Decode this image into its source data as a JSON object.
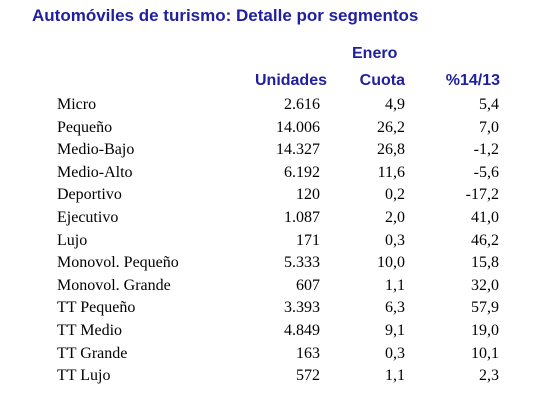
{
  "title": "Automóviles de turismo: Detalle por segmentos",
  "header": {
    "group": "Enero",
    "col_units": "Unidades",
    "col_share": "Cuota",
    "col_change": "%14/13"
  },
  "rows": [
    {
      "segment": "Micro",
      "units": "2.616",
      "share": "4,9",
      "change": "5,4"
    },
    {
      "segment": "Pequeño",
      "units": "14.006",
      "share": "26,2",
      "change": "7,0"
    },
    {
      "segment": "Medio-Bajo",
      "units": "14.327",
      "share": "26,8",
      "change": "-1,2"
    },
    {
      "segment": "Medio-Alto",
      "units": "6.192",
      "share": "11,6",
      "change": "-5,6"
    },
    {
      "segment": "Deportivo",
      "units": "120",
      "share": "0,2",
      "change": "-17,2"
    },
    {
      "segment": "Ejecutivo",
      "units": "1.087",
      "share": "2,0",
      "change": "41,0"
    },
    {
      "segment": "Lujo",
      "units": "171",
      "share": "0,3",
      "change": "46,2"
    },
    {
      "segment": "Monovol. Pequeño",
      "units": "5.333",
      "share": "10,0",
      "change": "15,8"
    },
    {
      "segment": "Monovol. Grande",
      "units": "607",
      "share": "1,1",
      "change": "32,0"
    },
    {
      "segment": "TT Pequeño",
      "units": "3.393",
      "share": "6,3",
      "change": "57,9"
    },
    {
      "segment": "TT Medio",
      "units": "4.849",
      "share": "9,1",
      "change": "19,0"
    },
    {
      "segment": "TT Grande",
      "units": "163",
      "share": "0,3",
      "change": "10,1"
    },
    {
      "segment": "TT Lujo",
      "units": "572",
      "share": "1,1",
      "change": "2,3"
    }
  ],
  "colors": {
    "heading": "#1f1fa0",
    "text": "#000000",
    "background": "#ffffff"
  }
}
